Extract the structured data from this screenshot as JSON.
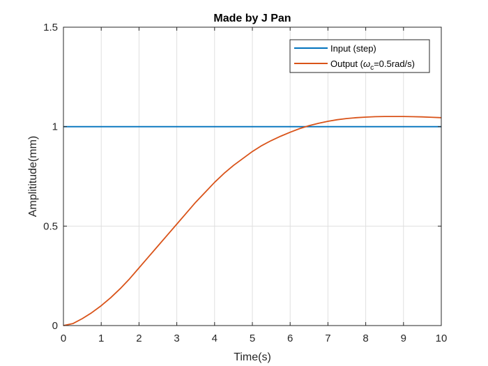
{
  "chart_data": {
    "type": "line",
    "title": "Made by J Pan",
    "xlabel": "Time(s)",
    "ylabel": "Amplititude(mm)",
    "xlim": [
      0,
      10
    ],
    "ylim": [
      0,
      1.5
    ],
    "xticks": [
      0,
      1,
      2,
      3,
      4,
      5,
      6,
      7,
      8,
      9,
      10
    ],
    "yticks": [
      0,
      0.5,
      1,
      1.5
    ],
    "xtick_labels": [
      "0",
      "1",
      "2",
      "3",
      "4",
      "5",
      "6",
      "7",
      "8",
      "9",
      "10"
    ],
    "ytick_labels": [
      "0",
      "0.5",
      "1",
      "1.5"
    ],
    "grid": true,
    "legend_position": "top-right",
    "legend": {
      "input_label": "Input (step)",
      "output_prefix": "Output (",
      "output_symbol": "ω",
      "output_subscript": "c",
      "output_suffix": "=0.5rad/s)"
    },
    "series": [
      {
        "name": "Input (step)",
        "color": "#0072BD",
        "x": [
          0,
          10
        ],
        "y": [
          1,
          1
        ]
      },
      {
        "name": "Output (ωc=0.5rad/s)",
        "color": "#D95319",
        "x": [
          0,
          0.25,
          0.5,
          0.75,
          1,
          1.25,
          1.5,
          1.75,
          2,
          2.25,
          2.5,
          2.75,
          3,
          3.25,
          3.5,
          3.75,
          4,
          4.25,
          4.5,
          4.75,
          5,
          5.25,
          5.5,
          5.75,
          6,
          6.25,
          6.5,
          6.75,
          7,
          7.25,
          7.5,
          7.75,
          8,
          8.25,
          8.5,
          8.75,
          9,
          9.25,
          9.5,
          9.75,
          10
        ],
        "y": [
          0,
          0.01,
          0.035,
          0.065,
          0.1,
          0.14,
          0.185,
          0.235,
          0.29,
          0.345,
          0.4,
          0.455,
          0.51,
          0.565,
          0.62,
          0.67,
          0.72,
          0.765,
          0.805,
          0.84,
          0.875,
          0.905,
          0.93,
          0.952,
          0.972,
          0.99,
          1.005,
          1.017,
          1.027,
          1.035,
          1.041,
          1.045,
          1.048,
          1.05,
          1.051,
          1.051,
          1.051,
          1.05,
          1.049,
          1.047,
          1.045
        ]
      }
    ]
  }
}
